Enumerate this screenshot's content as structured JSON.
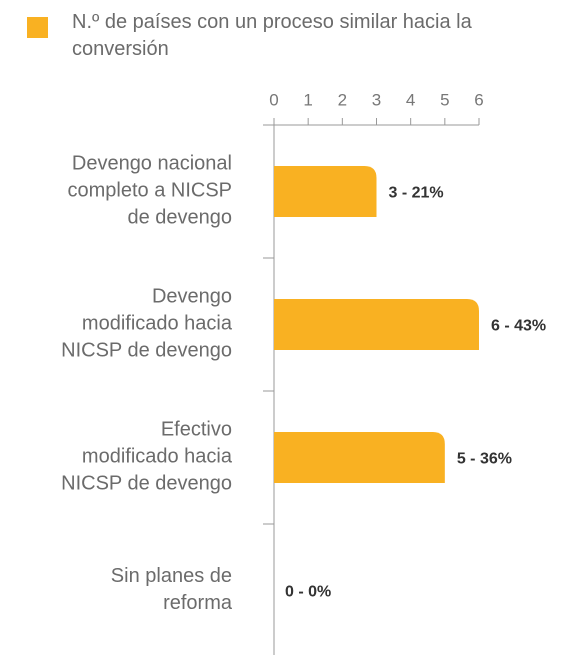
{
  "chart_data": {
    "type": "bar",
    "categories": [
      "Devengo nacional\ncompleto a NICSP\nde devengo",
      "Devengo\nmodificado hacia\nNICSP de devengo",
      "Efectivo\nmodificado hacia\nNICSP de devengo",
      "Sin planes de\nreforma"
    ],
    "series": [
      {
        "name": "N.º de países con un proceso similar hacia la conversión",
        "color": "#f9b122",
        "values": [
          3,
          6,
          5,
          0
        ],
        "value_labels": [
          "3 - 21%",
          "6 - 43%",
          "5 - 36%",
          "0 - 0%"
        ]
      }
    ],
    "xlim": [
      0,
      6
    ],
    "xticks": [
      0,
      1,
      2,
      3,
      4,
      5,
      6
    ]
  }
}
